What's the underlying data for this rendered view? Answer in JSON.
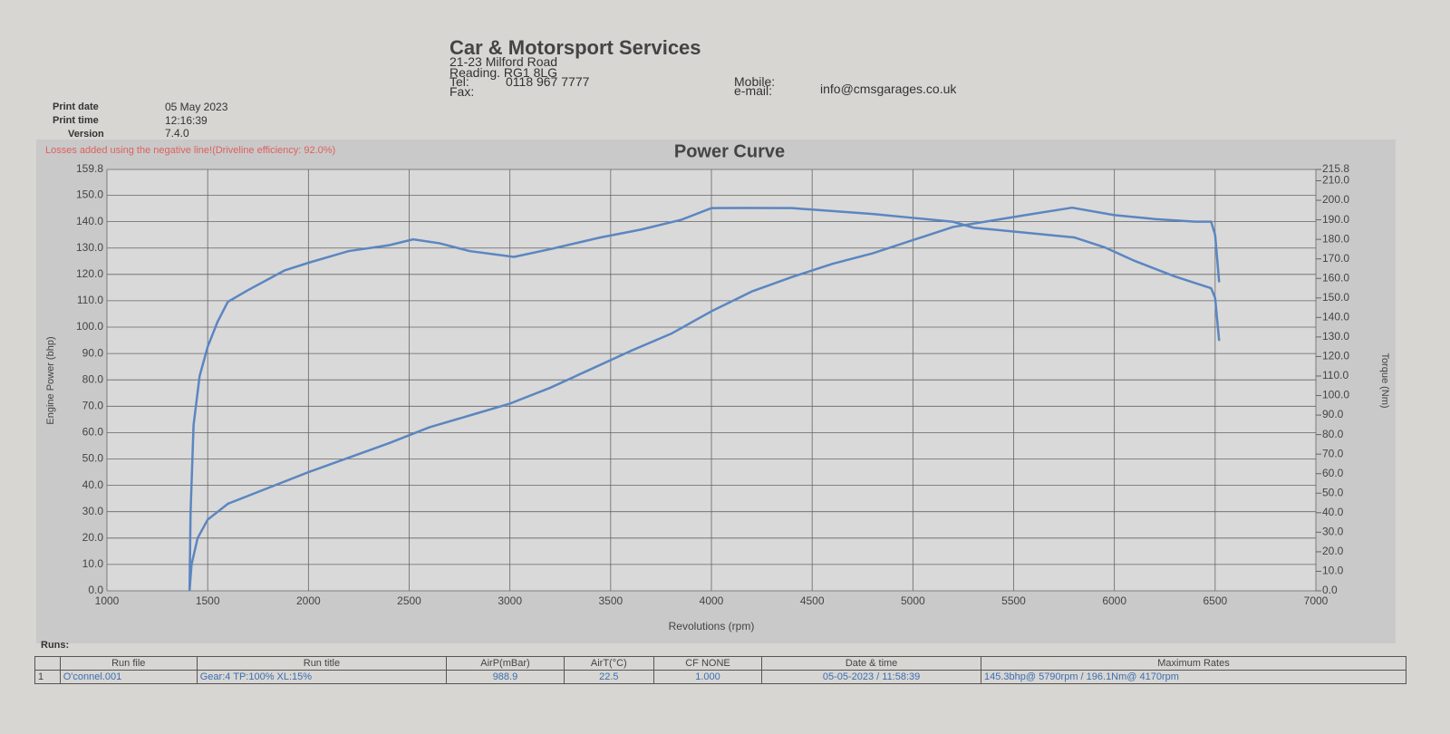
{
  "header": {
    "company": "Car & Motorsport Services",
    "address1": "21-23 Milford Road",
    "address2": "Reading. RG1 8LG",
    "tel_label": "Tel:",
    "tel": "0118 967 7777",
    "fax_label": "Fax:",
    "mobile_label": "Mobile:",
    "email_label": "e-mail:",
    "email": "info@cmsgarages.co.uk"
  },
  "meta": {
    "print_date_label": "Print date",
    "print_date": "05 May 2023",
    "print_time_label": "Print time",
    "print_time": "12:16:39",
    "version_label": "Version",
    "version": "7.4.0"
  },
  "chart_data": {
    "type": "line",
    "title": "Power Curve",
    "annotation": "Losses added using the negative line!(Driveline efficiency: 92.0%)",
    "xlabel": "Revolutions (rpm)",
    "ylabel": "Engine Power (bhp)",
    "y2label": "Torque (Nm)",
    "grid": true,
    "xlim": [
      1000,
      7000
    ],
    "xticks": [
      1000,
      1500,
      2000,
      2500,
      3000,
      3500,
      4000,
      4500,
      5000,
      5500,
      6000,
      6500,
      7000
    ],
    "ylim": [
      0,
      159.8
    ],
    "yticks": [
      {
        "value": 0,
        "label": "0.0"
      },
      {
        "value": 10,
        "label": "10.0"
      },
      {
        "value": 20,
        "label": "20.0"
      },
      {
        "value": 30,
        "label": "30.0"
      },
      {
        "value": 40,
        "label": "40.0"
      },
      {
        "value": 50,
        "label": "50.0"
      },
      {
        "value": 60,
        "label": "60.0"
      },
      {
        "value": 70,
        "label": "70.0"
      },
      {
        "value": 80,
        "label": "80.0"
      },
      {
        "value": 90,
        "label": "90.0"
      },
      {
        "value": 100,
        "label": "100.0"
      },
      {
        "value": 110,
        "label": "110.0"
      },
      {
        "value": 120,
        "label": "120.0"
      },
      {
        "value": 130,
        "label": "130.0"
      },
      {
        "value": 140,
        "label": "140.0"
      },
      {
        "value": 150,
        "label": "150.0"
      },
      159.8
    ],
    "y2lim": [
      0,
      215.8
    ],
    "y2ticks": [
      {
        "value": 0,
        "label": "0.0"
      },
      {
        "value": 10,
        "label": "10.0"
      },
      {
        "value": 20,
        "label": "20.0"
      },
      {
        "value": 30,
        "label": "30.0"
      },
      {
        "value": 40,
        "label": "40.0"
      },
      {
        "value": 50,
        "label": "50.0"
      },
      {
        "value": 60,
        "label": "60.0"
      },
      {
        "value": 70,
        "label": "70.0"
      },
      {
        "value": 80,
        "label": "80.0"
      },
      {
        "value": 90,
        "label": "90.0"
      },
      {
        "value": 100,
        "label": "100.0"
      },
      {
        "value": 110,
        "label": "110.0"
      },
      {
        "value": 120,
        "label": "120.0"
      },
      {
        "value": 130,
        "label": "130.0"
      },
      {
        "value": 140,
        "label": "140.0"
      },
      {
        "value": 150,
        "label": "150.0"
      },
      {
        "value": 160,
        "label": "160.0"
      },
      {
        "value": 170,
        "label": "170.0"
      },
      {
        "value": 180,
        "label": "180.0"
      },
      {
        "value": 190,
        "label": "190.0"
      },
      {
        "value": 200,
        "label": "200.0"
      },
      {
        "value": 210,
        "label": "210.0"
      },
      215.8
    ],
    "series": [
      {
        "color": "#5b86c0",
        "x": [
          1410,
          1420,
          1450,
          1500,
          1600,
          1800,
          2000,
          2200,
          2400,
          2600,
          2800,
          3000,
          3200,
          3400,
          3600,
          3800,
          4000,
          4200,
          4400,
          4600,
          4800,
          5000,
          5200,
          5400,
          5600,
          5790,
          6000,
          6200,
          6400,
          6480,
          6500,
          6520
        ],
        "values": [
          0,
          10,
          20,
          27,
          33,
          39,
          45,
          50.5,
          56,
          62,
          66.5,
          71,
          77,
          84,
          91,
          97.5,
          106,
          113.5,
          119,
          124,
          128,
          133,
          138,
          140.5,
          143,
          145.3,
          142.5,
          141,
          140,
          140,
          135,
          117
        ]
      },
      {
        "color": "#5b86c0",
        "axis": "y2",
        "x": [
          1410,
          1415,
          1430,
          1460,
          1500,
          1550,
          1600,
          1700,
          1880,
          2000,
          2200,
          2400,
          2520,
          2650,
          2800,
          3020,
          3200,
          3450,
          3650,
          3850,
          4000,
          4170,
          4400,
          4600,
          4800,
          5000,
          5200,
          5300,
          5500,
          5700,
          5800,
          5950,
          6100,
          6300,
          6480,
          6500,
          6520
        ],
        "values": [
          0,
          40,
          85,
          110,
          125,
          138,
          148,
          154,
          164,
          168,
          174,
          177,
          180,
          178,
          174,
          171,
          175,
          181,
          185,
          190,
          196,
          196.1,
          196,
          194.5,
          193,
          191,
          189,
          186,
          184,
          182,
          181,
          176,
          169,
          161,
          155,
          150,
          128
        ]
      }
    ]
  },
  "table": {
    "label": "Runs:",
    "headers": [
      "Run file",
      "Run title",
      "AirP(mBar)",
      "AirT(°C)",
      "CF NONE",
      "Date & time",
      "Maximum Rates"
    ],
    "rows": [
      [
        "1",
        "O'connel.001",
        "Gear:4 TP:100% XL:15%",
        "988.9",
        "22.5",
        "1.000",
        "05-05-2023 / 11:58:39",
        "145.3bhp@ 5790rpm / 196.1Nm@ 4170rpm"
      ]
    ]
  }
}
